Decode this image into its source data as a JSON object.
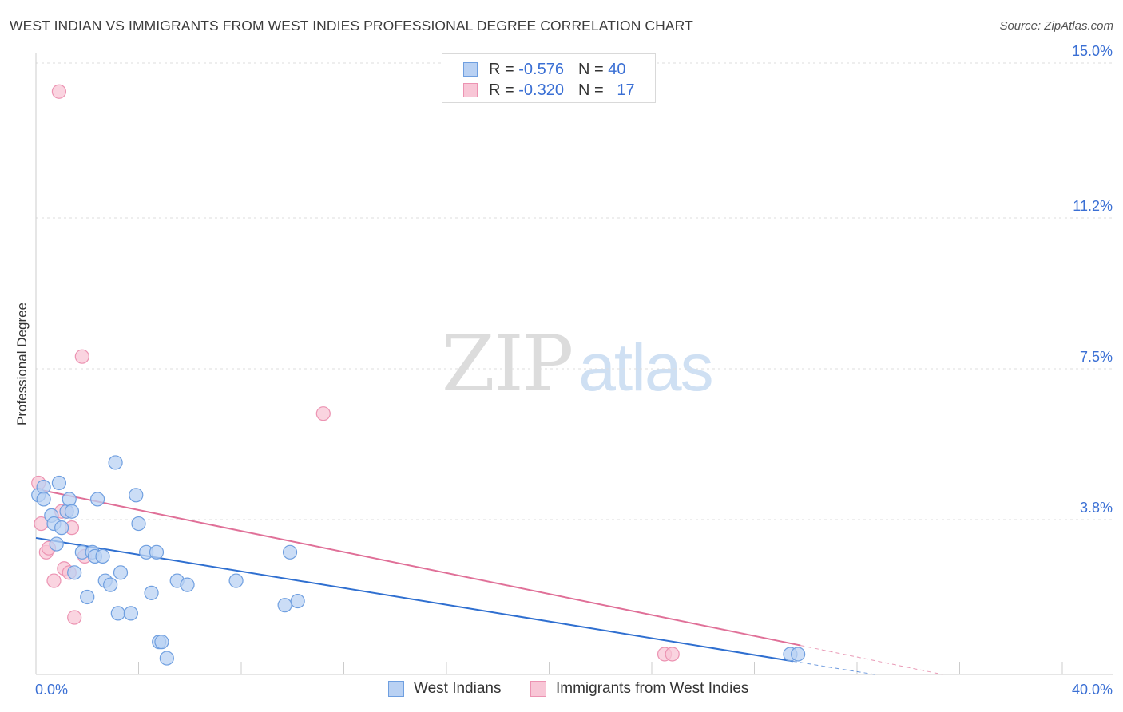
{
  "header": {
    "title": "WEST INDIAN VS IMMIGRANTS FROM WEST INDIES PROFESSIONAL DEGREE CORRELATION CHART",
    "source": "Source: ZipAtlas.com"
  },
  "watermark": {
    "zip": "ZIP",
    "atlas": "atlas"
  },
  "colors": {
    "blue_fill": "#b9d1f3",
    "blue_stroke": "#6f9fe0",
    "blue_line": "#2f6fd0",
    "pink_fill": "#f8c6d6",
    "pink_stroke": "#ec93b2",
    "pink_line": "#e07098",
    "axis_label": "#3a6fd4",
    "grid": "#dddddd"
  },
  "legend_top": {
    "rows": [
      {
        "r_label": "R =",
        "r_value": "-0.576",
        "n_label": "N =",
        "n_value": "40"
      },
      {
        "r_label": "R =",
        "r_value": "-0.320",
        "n_label": "N =",
        "n_value": "17"
      }
    ]
  },
  "legend_bottom": {
    "items": [
      {
        "label": "West Indians"
      },
      {
        "label": "Immigrants from West Indies"
      }
    ]
  },
  "chart_data": {
    "type": "scatter",
    "title": "WEST INDIAN VS IMMIGRANTS FROM WEST INDIES PROFESSIONAL DEGREE CORRELATION CHART",
    "xlabel": "",
    "ylabel": "Professional Degree",
    "xlim": [
      0,
      40
    ],
    "ylim": [
      0,
      15
    ],
    "x_tick_labels": [
      {
        "value": 0,
        "label": "0.0%"
      },
      {
        "value": 40,
        "label": "40.0%"
      }
    ],
    "y_tick_labels": [
      {
        "value": 3.8,
        "label": "3.8%"
      },
      {
        "value": 7.5,
        "label": "7.5%"
      },
      {
        "value": 11.2,
        "label": "11.2%"
      },
      {
        "value": 15.0,
        "label": "15.0%"
      }
    ],
    "grid": true,
    "legend_position": "bottom",
    "series": [
      {
        "name": "West Indians",
        "r": -0.576,
        "n": 40,
        "trend": {
          "x0": 0,
          "y0": 3.35,
          "x1": 40,
          "y1": -0.75,
          "solid_until": 29.5
        },
        "points": [
          [
            0.1,
            4.4
          ],
          [
            0.3,
            4.6
          ],
          [
            0.3,
            4.3
          ],
          [
            0.6,
            3.9
          ],
          [
            0.7,
            3.7
          ],
          [
            0.8,
            3.2
          ],
          [
            0.9,
            4.7
          ],
          [
            1.0,
            3.6
          ],
          [
            1.2,
            4.0
          ],
          [
            1.3,
            4.3
          ],
          [
            1.4,
            4.0
          ],
          [
            1.5,
            2.5
          ],
          [
            1.8,
            3.0
          ],
          [
            2.0,
            1.9
          ],
          [
            2.2,
            3.0
          ],
          [
            2.3,
            2.9
          ],
          [
            2.4,
            4.3
          ],
          [
            2.6,
            2.9
          ],
          [
            2.7,
            2.3
          ],
          [
            2.9,
            2.2
          ],
          [
            3.1,
            5.2
          ],
          [
            3.2,
            1.5
          ],
          [
            3.3,
            2.5
          ],
          [
            3.7,
            1.5
          ],
          [
            3.9,
            4.4
          ],
          [
            4.0,
            3.7
          ],
          [
            4.3,
            3.0
          ],
          [
            4.5,
            2.0
          ],
          [
            4.7,
            3.0
          ],
          [
            4.8,
            0.8
          ],
          [
            4.9,
            0.8
          ],
          [
            5.1,
            0.4
          ],
          [
            5.5,
            2.3
          ],
          [
            5.9,
            2.2
          ],
          [
            7.8,
            2.3
          ],
          [
            9.7,
            1.7
          ],
          [
            9.9,
            3.0
          ],
          [
            10.2,
            1.8
          ],
          [
            29.4,
            0.5
          ],
          [
            29.7,
            0.5
          ]
        ]
      },
      {
        "name": "Immigrants from West Indies",
        "r": -0.32,
        "n": 17,
        "trend": {
          "x0": 0,
          "y0": 4.55,
          "x1": 40,
          "y1": -0.6,
          "solid_until": 29.8
        },
        "points": [
          [
            0.1,
            4.7
          ],
          [
            0.2,
            3.7
          ],
          [
            0.4,
            3.0
          ],
          [
            0.5,
            3.1
          ],
          [
            0.7,
            2.3
          ],
          [
            0.9,
            14.3
          ],
          [
            1.0,
            4.0
          ],
          [
            1.1,
            2.6
          ],
          [
            1.2,
            4.0
          ],
          [
            1.3,
            2.5
          ],
          [
            1.4,
            3.6
          ],
          [
            1.5,
            1.4
          ],
          [
            1.8,
            7.8
          ],
          [
            1.9,
            2.9
          ],
          [
            11.2,
            6.4
          ],
          [
            24.5,
            0.5
          ],
          [
            24.8,
            0.5
          ]
        ]
      }
    ]
  }
}
